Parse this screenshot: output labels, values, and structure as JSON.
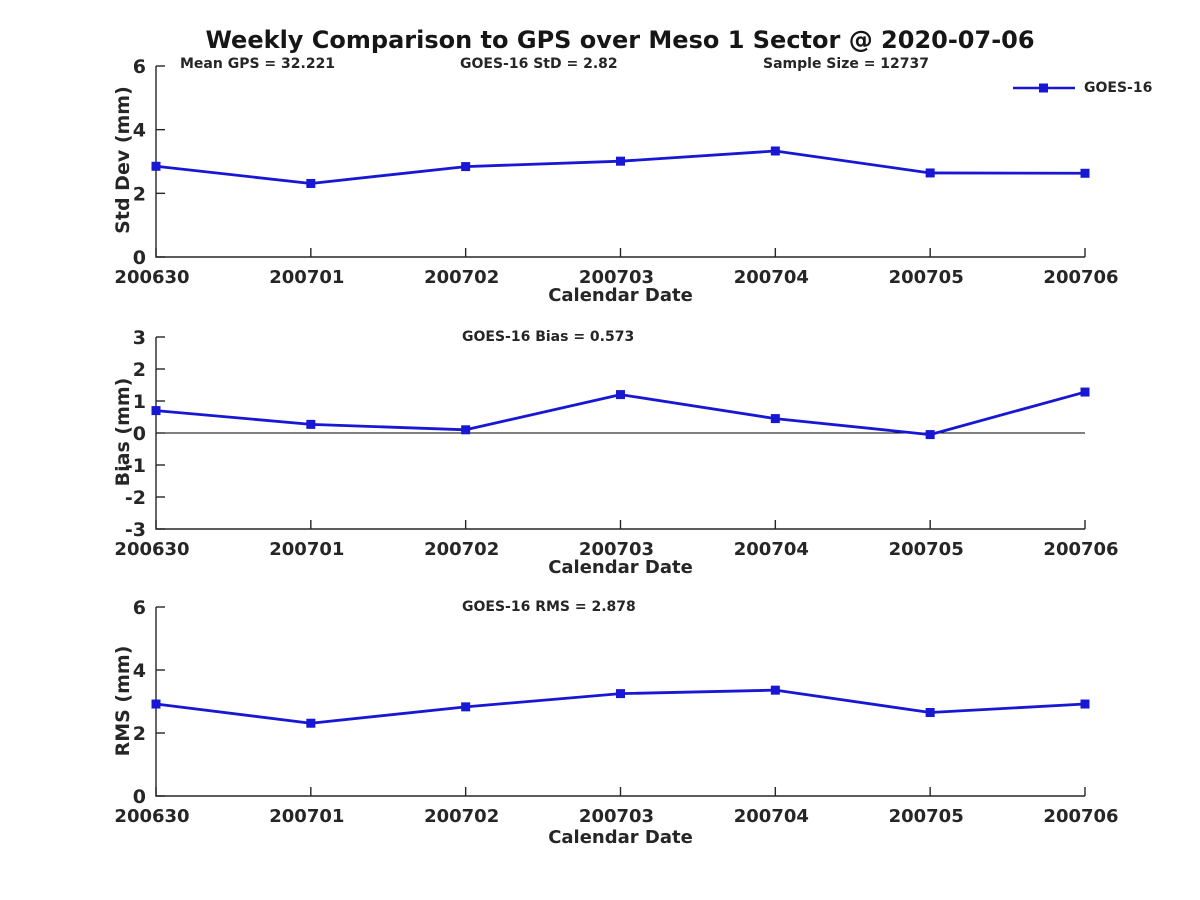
{
  "meta": {
    "background": "#ffffff",
    "text_color": "#262626",
    "line_color": "#1717d4",
    "zero_line_color": "#000000"
  },
  "title": "Weekly Comparison to GPS over Meso 1 Sector @ 2020-07-06",
  "header_stats": {
    "mean_gps": "Mean GPS = 32.221",
    "goes_std": "GOES-16 StD = 2.82",
    "sample_size": "Sample Size = 12737"
  },
  "legend": {
    "label": "GOES-16",
    "marker": "square",
    "color": "#1717d4",
    "position": "upper right"
  },
  "chart_data": [
    {
      "type": "line",
      "id": "std-dev",
      "title": "",
      "categories": [
        "200630",
        "200701",
        "200702",
        "200703",
        "200704",
        "200705",
        "200706"
      ],
      "series": [
        {
          "name": "GOES-16",
          "marker": "square",
          "values": [
            2.85,
            2.31,
            2.84,
            3.01,
            3.33,
            2.64,
            2.63
          ]
        }
      ],
      "xlabel": "Calendar Date",
      "ylabel": "Std Dev (mm)",
      "ylim": [
        0,
        6
      ],
      "yticks": [
        0,
        2,
        4,
        6
      ],
      "grid": false,
      "zero_line": false,
      "legend_position": "upper right"
    },
    {
      "type": "line",
      "id": "bias",
      "title": "GOES-16 Bias  = 0.573",
      "categories": [
        "200630",
        "200701",
        "200702",
        "200703",
        "200704",
        "200705",
        "200706"
      ],
      "series": [
        {
          "name": "GOES-16",
          "marker": "square",
          "values": [
            0.7,
            0.27,
            0.1,
            1.2,
            0.45,
            -0.05,
            1.28
          ]
        }
      ],
      "xlabel": "Calendar Date",
      "ylabel": "Bias (mm)",
      "ylim": [
        -3,
        3
      ],
      "yticks": [
        -3,
        -2,
        -1,
        0,
        1,
        2,
        3
      ],
      "grid": false,
      "zero_line": true
    },
    {
      "type": "line",
      "id": "rms",
      "title": "GOES-16 RMS = 2.878",
      "categories": [
        "200630",
        "200701",
        "200702",
        "200703",
        "200704",
        "200705",
        "200706"
      ],
      "series": [
        {
          "name": "GOES-16",
          "marker": "square",
          "values": [
            2.92,
            2.31,
            2.83,
            3.25,
            3.36,
            2.65,
            2.92
          ]
        }
      ],
      "xlabel": "Calendar Date",
      "ylabel": "RMS (mm)",
      "ylim": [
        0,
        6
      ],
      "yticks": [
        0,
        2,
        4,
        6
      ],
      "grid": false,
      "zero_line": false
    }
  ]
}
